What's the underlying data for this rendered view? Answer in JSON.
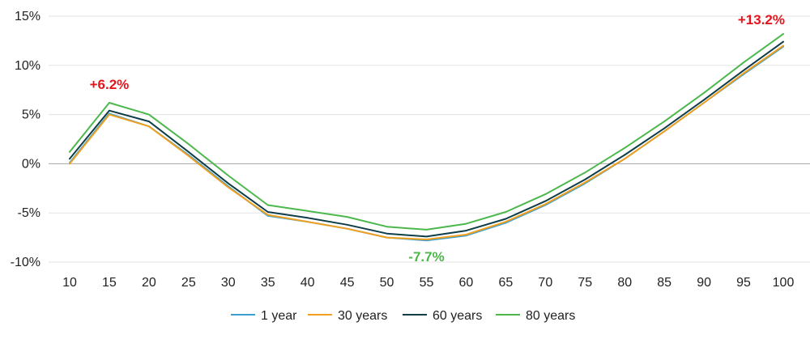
{
  "chart_data": {
    "type": "line",
    "x": [
      10,
      15,
      20,
      25,
      30,
      35,
      40,
      45,
      50,
      55,
      60,
      65,
      70,
      75,
      80,
      85,
      90,
      95,
      100
    ],
    "xticks": [
      "10",
      "15",
      "20",
      "25",
      "30",
      "35",
      "40",
      "45",
      "50",
      "55",
      "60",
      "65",
      "70",
      "75",
      "80",
      "85",
      "90",
      "95",
      "100"
    ],
    "ylim": [
      -10,
      15
    ],
    "yticks": [
      {
        "value": 15,
        "label": "15%"
      },
      {
        "value": 10,
        "label": "10%"
      },
      {
        "value": 5,
        "label": "5%"
      },
      {
        "value": 0,
        "label": "0%"
      },
      {
        "value": -5,
        "label": "-5%"
      },
      {
        "value": -10,
        "label": "-10%"
      }
    ],
    "grid": true,
    "legend_position": "bottom",
    "series": [
      {
        "name": "1 year",
        "color": "#3a9fd0",
        "values": [
          0.1,
          5.1,
          3.8,
          0.9,
          -2.3,
          -5.3,
          -5.9,
          -6.6,
          -7.5,
          -7.8,
          -7.3,
          -6.0,
          -4.2,
          -2.0,
          0.5,
          3.3,
          6.2,
          9.1,
          11.9
        ]
      },
      {
        "name": "30 years",
        "color": "#f0a01e",
        "values": [
          0.0,
          5.0,
          3.8,
          0.8,
          -2.4,
          -5.2,
          -5.9,
          -6.6,
          -7.5,
          -7.7,
          -7.2,
          -5.9,
          -4.1,
          -1.9,
          0.5,
          3.3,
          6.2,
          9.2,
          12.0
        ]
      },
      {
        "name": "60 years",
        "color": "#0f3d48",
        "values": [
          0.5,
          5.4,
          4.3,
          1.2,
          -2.0,
          -4.9,
          -5.5,
          -6.2,
          -7.1,
          -7.4,
          -6.8,
          -5.6,
          -3.8,
          -1.6,
          0.9,
          3.6,
          6.5,
          9.5,
          12.4
        ]
      },
      {
        "name": "80 years",
        "color": "#4cb84c",
        "values": [
          1.2,
          6.2,
          5.0,
          2.0,
          -1.2,
          -4.2,
          -4.8,
          -5.4,
          -6.4,
          -6.7,
          -6.1,
          -4.9,
          -3.1,
          -0.9,
          1.6,
          4.3,
          7.2,
          10.3,
          13.2
        ]
      }
    ],
    "annotations": [
      {
        "text": "+6.2%",
        "x": 15,
        "y": 6.2,
        "color": "#e8141c"
      },
      {
        "text": "-7.7%",
        "x": 55,
        "y": -7.7,
        "color": "#4cb84c"
      },
      {
        "text": "+13.2%",
        "x": 100,
        "y": 13.2,
        "color": "#e8141c"
      }
    ]
  }
}
